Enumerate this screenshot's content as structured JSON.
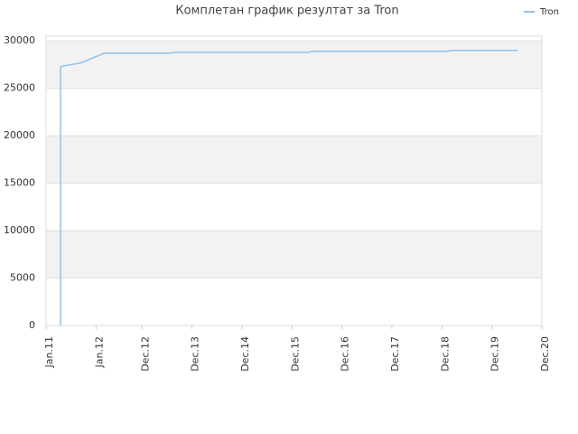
{
  "chart_data": {
    "type": "line",
    "title": "Комплетан график резултат за Tron",
    "x": [
      2011.29,
      2011.29,
      2011.71,
      2012.16,
      2013.48,
      2013.55,
      2016.26,
      2016.31,
      2019.03,
      2019.12,
      2020.44
    ],
    "series": [
      {
        "name": "Tron",
        "color": "#8ec3f0",
        "values": [
          0,
          27300,
          27700,
          28700,
          28700,
          28800,
          28800,
          28900,
          28900,
          29000,
          29000
        ]
      }
    ],
    "xlim": [
      2011.0,
      2020.92
    ],
    "xticks": [
      {
        "value": 2011.0,
        "label": "Jan.11"
      },
      {
        "value": 2012.0,
        "label": "Jan.12"
      },
      {
        "value": 2012.92,
        "label": "Dec.12"
      },
      {
        "value": 2013.92,
        "label": "Dec.13"
      },
      {
        "value": 2014.92,
        "label": "Dec.14"
      },
      {
        "value": 2015.92,
        "label": "Dec.15"
      },
      {
        "value": 2016.92,
        "label": "Dec.16"
      },
      {
        "value": 2017.92,
        "label": "Dec.17"
      },
      {
        "value": 2018.92,
        "label": "Dec.18"
      },
      {
        "value": 2019.92,
        "label": "Dec.19"
      },
      {
        "value": 2020.92,
        "label": "Dec.20"
      }
    ],
    "ylim": [
      0,
      30500
    ],
    "yticks": [
      0,
      5000,
      10000,
      15000,
      20000,
      25000,
      30000
    ],
    "grid": true,
    "legend": "top-right"
  }
}
